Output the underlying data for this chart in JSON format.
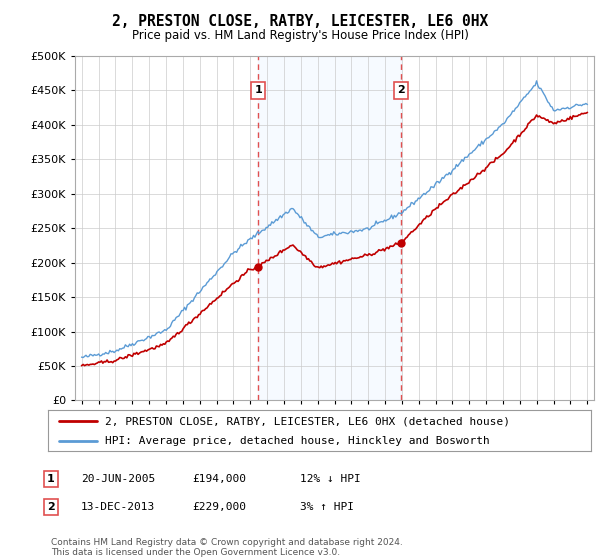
{
  "title": "2, PRESTON CLOSE, RATBY, LEICESTER, LE6 0HX",
  "subtitle": "Price paid vs. HM Land Registry's House Price Index (HPI)",
  "legend_line1": "2, PRESTON CLOSE, RATBY, LEICESTER, LE6 0HX (detached house)",
  "legend_line2": "HPI: Average price, detached house, Hinckley and Bosworth",
  "ann1_label": "1",
  "ann1_date": "20-JUN-2005",
  "ann1_price": "£194,000",
  "ann1_hpi": "12% ↓ HPI",
  "ann1_x": 2005.47,
  "ann1_y": 194000,
  "ann2_label": "2",
  "ann2_date": "13-DEC-2013",
  "ann2_price": "£229,000",
  "ann2_hpi": "3% ↑ HPI",
  "ann2_x": 2013.95,
  "ann2_y": 229000,
  "footer": "Contains HM Land Registry data © Crown copyright and database right 2024.\nThis data is licensed under the Open Government Licence v3.0.",
  "hpi_color": "#5b9bd5",
  "price_color": "#c00000",
  "vline_color": "#e05050",
  "shaded_color": "#ddeeff",
  "background_color": "#ffffff",
  "ylim": [
    0,
    500000
  ],
  "yticks": [
    0,
    50000,
    100000,
    150000,
    200000,
    250000,
    300000,
    350000,
    400000,
    450000,
    500000
  ],
  "xlim_lo": 1994.6,
  "xlim_hi": 2025.4
}
